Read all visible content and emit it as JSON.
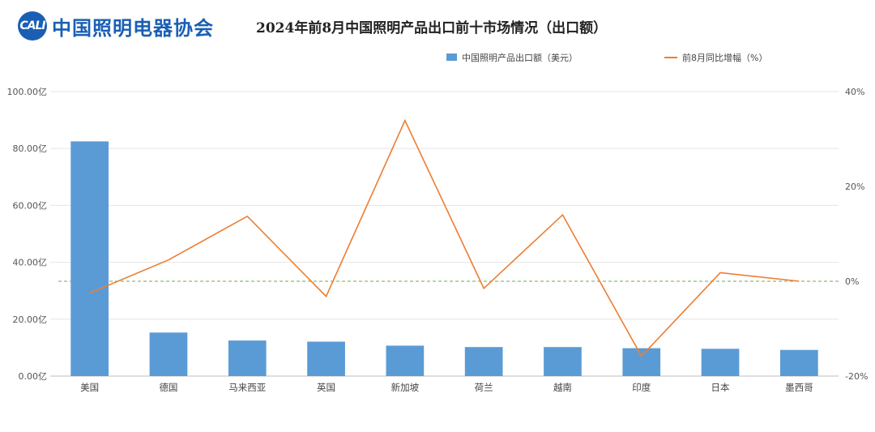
{
  "header": {
    "logo_mark": "CALI",
    "logo_text": "中国照明电器协会",
    "title": "2024年前8月中国照明产品出口前十市场情况（出口额）"
  },
  "colors": {
    "bar": "#5b9bd5",
    "line": "#ed7d31",
    "zero_line": "#70ad47",
    "grid": "#e6e6e6"
  },
  "chart_data": {
    "type": "bar",
    "title": "2024年前8月中国照明产品出口前十市场情况（出口额）",
    "categories": [
      "美国",
      "德国",
      "马来西亚",
      "英国",
      "新加坡",
      "荷兰",
      "越南",
      "印度",
      "日本",
      "墨西哥"
    ],
    "series": [
      {
        "name": "中国照明产品出口额（美元）",
        "type": "bar",
        "axis": "left",
        "values": [
          82.5,
          15.3,
          12.5,
          12.1,
          10.7,
          10.2,
          10.2,
          9.8,
          9.6,
          9.2
        ]
      },
      {
        "name": "前8月同比增幅（%）",
        "type": "line",
        "axis": "right",
        "values": [
          -2.5,
          4.5,
          13.7,
          -3.2,
          33.9,
          -1.5,
          14.0,
          -15.8,
          1.8,
          0.0
        ]
      }
    ],
    "y_left": {
      "ticks": [
        "0.00亿",
        "20.00亿",
        "40.00亿",
        "60.00亿",
        "80.00亿",
        "100.00亿"
      ],
      "min": 0,
      "max": 100
    },
    "y_right": {
      "ticks": [
        "-20%",
        "0%",
        "20%",
        "40%"
      ],
      "min": -20,
      "max": 40
    },
    "grid": true,
    "legend_position": "top"
  }
}
